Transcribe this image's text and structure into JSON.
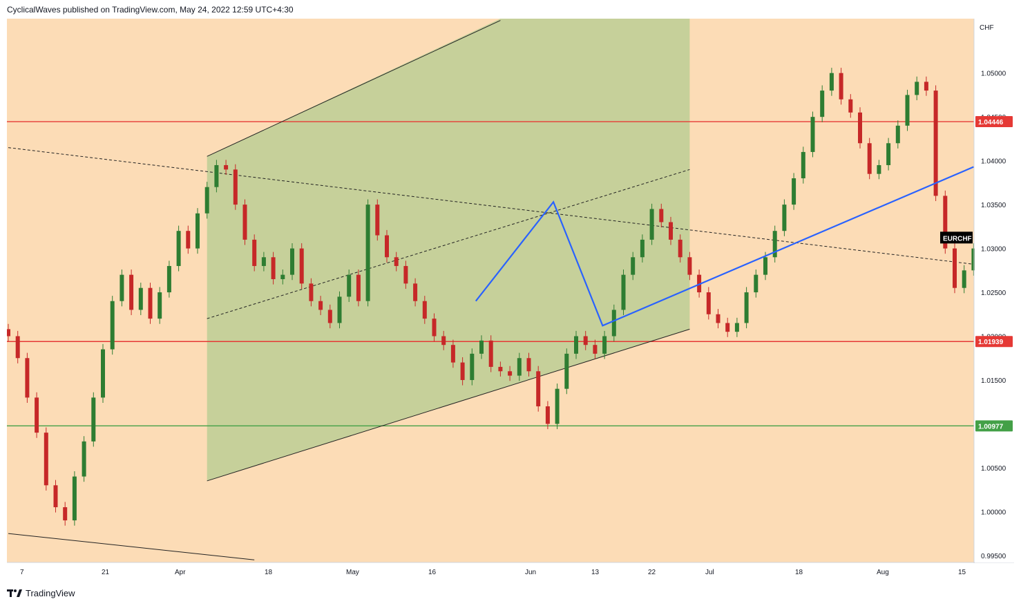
{
  "header": {
    "published_by": "CyclicalWaves published on TradingView.com, May 24, 2022 12:59 UTC+4:30"
  },
  "footer": {
    "brand": "TradingView",
    "logo_icon": "tradingview-logo-icon"
  },
  "colors": {
    "background": "#fcdcb6",
    "channel_fill": "#c6d09a",
    "up_candle": "#2e7d32",
    "down_candle": "#c62828",
    "resistance_line": "#e53935",
    "support_line": "#43a047",
    "projection": "#2962ff",
    "symbol_label_bg": "#000000"
  },
  "chart_data": {
    "type": "candlestick",
    "symbol": "EURCHF",
    "currency": "CHF",
    "x_ticks": [
      "7",
      "21",
      "Apr",
      "18",
      "May",
      "16",
      "Jun",
      "13",
      "22",
      "Jul",
      "18",
      "Aug",
      "15"
    ],
    "y_ticks": [
      "1.05000",
      "1.04500",
      "1.04000",
      "1.03500",
      "1.03000",
      "1.02500",
      "1.02000",
      "1.01500",
      "1.01000",
      "1.00500",
      "1.00000",
      "0.99500"
    ],
    "ylim": [
      0.9942,
      1.0562
    ],
    "grid": false,
    "price_labels": [
      {
        "label": "1.04446",
        "value": 1.04446,
        "color": "#e53935"
      },
      {
        "label": "1.01939",
        "value": 1.01939,
        "color": "#e53935"
      },
      {
        "label": "1.00977",
        "value": 1.00977,
        "color": "#43a047"
      }
    ],
    "symbol_label": {
      "label": "EURCHF",
      "value": 1.0312
    },
    "horizontal_levels": [
      {
        "name": "resistance",
        "value": 1.04446
      },
      {
        "name": "support",
        "value": 1.01939
      },
      {
        "name": "support-2",
        "value": 1.00977
      }
    ],
    "candles_close": [
      1.02,
      1.0175,
      1.013,
      1.009,
      1.003,
      1.0005,
      0.999,
      1.004,
      1.008,
      1.013,
      1.0185,
      1.024,
      1.027,
      1.023,
      1.0255,
      1.022,
      1.025,
      1.028,
      1.032,
      1.03,
      1.034,
      1.037,
      1.0395,
      1.039,
      1.035,
      1.031,
      1.028,
      1.029,
      1.0265,
      1.027,
      1.03,
      1.026,
      1.024,
      1.023,
      1.0215,
      1.0245,
      1.027,
      1.024,
      1.035,
      1.0315,
      1.029,
      1.028,
      1.026,
      1.024,
      1.022,
      1.02,
      1.019,
      1.017,
      1.015,
      1.018,
      1.0195,
      1.0165,
      1.016,
      1.0155,
      1.0175,
      1.016,
      1.012,
      1.01,
      1.014,
      1.018,
      1.02,
      1.019,
      1.018,
      1.02,
      1.023,
      1.027,
      1.029,
      1.031,
      1.0345,
      1.033,
      1.031,
      1.029,
      1.027,
      1.025,
      1.0225,
      1.0215,
      1.0205,
      1.0215,
      1.025,
      1.027,
      1.029,
      1.032,
      1.035,
      1.038,
      1.041,
      1.045,
      1.048,
      1.05,
      1.047,
      1.0455,
      1.042,
      1.0385,
      1.0395,
      1.042,
      1.044,
      1.0475,
      1.049,
      1.048,
      1.036,
      1.03,
      1.0255,
      1.0275,
      1.03,
      1.0275,
      1.03,
      1.032,
      1.031
    ],
    "lines": [
      {
        "name": "channel-upper",
        "style": "solid",
        "from": [
          21,
          1.0405
        ],
        "to": [
          52,
          1.056
        ]
      },
      {
        "name": "channel-lower",
        "style": "solid",
        "from": [
          21,
          1.0035
        ],
        "to": [
          72,
          1.0208
        ]
      },
      {
        "name": "channel-mid",
        "style": "dashed",
        "from": [
          21,
          1.022
        ],
        "to": [
          72,
          1.039
        ]
      },
      {
        "name": "descending-trend",
        "style": "dashed",
        "from": [
          0,
          1.0415
        ],
        "to": [
          102,
          1.0282
        ]
      },
      {
        "name": "lower-trend",
        "style": "solid",
        "from": [
          0,
          0.9975
        ],
        "to": [
          26,
          0.9945
        ]
      }
    ],
    "projection_path": [
      [
        49.4,
        1.024
      ],
      [
        57.6,
        1.0353
      ],
      [
        62.8,
        1.0212
      ],
      [
        102,
        1.0393
      ]
    ],
    "channel_zone": {
      "x_start": 21,
      "x_end": 72
    }
  }
}
